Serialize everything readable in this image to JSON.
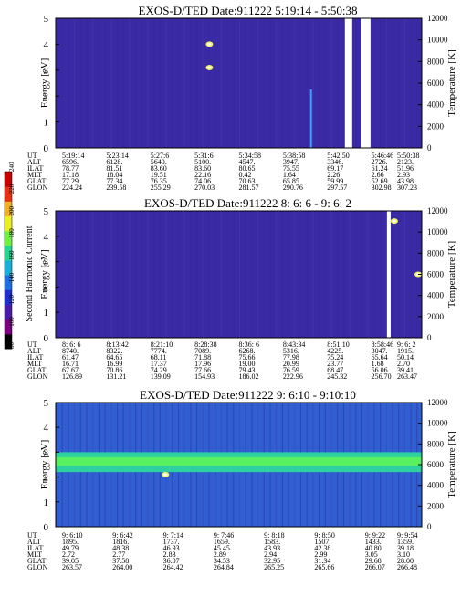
{
  "chart_data": [
    {
      "type": "heatmap",
      "title": "EXOS-D/TED   Date:911222  5:19:14 - 5:50:38",
      "ylabel": "Energy [eV]",
      "y2label": "Temperature [K]",
      "ylim": [
        0,
        5
      ],
      "yticks": [
        "0",
        "1",
        "2",
        "3",
        "4",
        "5"
      ],
      "y2lim": [
        0,
        12000
      ],
      "y2ticks": [
        "0",
        "2000",
        "4000",
        "6000",
        "8000",
        "10000",
        "12000"
      ],
      "background_color": "#3a2aa3",
      "features": [
        {
          "kind": "gap",
          "x0": 0.79,
          "x1": 0.81
        },
        {
          "kind": "gap",
          "x0": 0.835,
          "x1": 0.86
        },
        {
          "kind": "bright_spot",
          "x": 0.42,
          "y": 4.0
        },
        {
          "kind": "bright_spot",
          "x": 0.42,
          "y": 3.1
        },
        {
          "kind": "spike",
          "x": 0.695
        }
      ],
      "table": {
        "row_labels": [
          "UT",
          "ALT",
          "ILAT",
          "MLT",
          "GLAT",
          "GLON"
        ],
        "columns": [
          [
            "5:19:14",
            "6596.",
            "78.77",
            "17.18",
            "77.29",
            "224.24"
          ],
          [
            "5:23:14",
            "6128.",
            "81.51",
            "18.04",
            "77.34",
            "239.58"
          ],
          [
            "5:27:6",
            "5640.",
            "83.60",
            "19.51",
            "76.35",
            "255.29"
          ],
          [
            "5:31:6",
            "5100.",
            "83.60",
            "22.16",
            "74.06",
            "270.03"
          ],
          [
            "5:34:58",
            "4547.",
            "80.65",
            "0.42",
            "70.63",
            "281.57"
          ],
          [
            "5:38:58",
            "3947.",
            "75.55",
            "1.64",
            "65.85",
            "290.76"
          ],
          [
            "5:42:50",
            "3346.",
            "69.17",
            "2.26",
            "59.99",
            "297.57"
          ],
          [
            "5:46:46",
            "2726.",
            "61.24",
            "2.66",
            "52.69",
            "302.98"
          ],
          [
            "5:50:38",
            "2123.",
            "51.96",
            "2.93",
            "43.98",
            "307.23"
          ]
        ]
      }
    },
    {
      "type": "heatmap",
      "title": "EXOS-D/TED   Date:911222  8: 6: 6 - 9: 6: 2",
      "ylabel": "Energy [eV]",
      "y2label": "Temperature [K]",
      "ylim": [
        0,
        5
      ],
      "yticks": [
        "0",
        "1",
        "2",
        "3",
        "4",
        "5"
      ],
      "y2lim": [
        0,
        12000
      ],
      "y2ticks": [
        "0",
        "2000",
        "4000",
        "6000",
        "8000",
        "10000",
        "12000"
      ],
      "background_color": "#3a2aa3",
      "features": [
        {
          "kind": "gap",
          "x0": 0.905,
          "x1": 0.915
        },
        {
          "kind": "bright_spot",
          "x": 0.925,
          "y": 4.6
        },
        {
          "kind": "bright_spot",
          "x": 0.99,
          "y": 2.5
        }
      ],
      "table": {
        "row_labels": [
          "UT",
          "ALT",
          "ILAT",
          "MLT",
          "GLAT",
          "GLON"
        ],
        "columns": [
          [
            "8: 6: 6",
            "8740.",
            "61.47",
            "16.71",
            "67.67",
            "126.89"
          ],
          [
            "8:13:42",
            "8322.",
            "64.65",
            "16.99",
            "70.86",
            "131.21"
          ],
          [
            "8:21:10",
            "7774.",
            "68.11",
            "17.37",
            "74.29",
            "139.09"
          ],
          [
            "8:28:38",
            "7089.",
            "71.88",
            "17.96",
            "77.66",
            "154.93"
          ],
          [
            "8:36: 6",
            "6268.",
            "75.66",
            "19.00",
            "79.43",
            "186.02"
          ],
          [
            "8:43:34",
            "5316.",
            "77.98",
            "20.99",
            "76.59",
            "222.96"
          ],
          [
            "8:51:10",
            "4225.",
            "75.24",
            "23.77",
            "68.47",
            "245.32"
          ],
          [
            "8:58:46",
            "3047.",
            "65.64",
            "1.68",
            "56.06",
            "256.70"
          ],
          [
            "9: 6: 2",
            "1915.",
            "50.14",
            "2.70",
            "39.41",
            "263.47"
          ]
        ]
      }
    },
    {
      "type": "heatmap",
      "title": "EXOS-D/TED   Date:911222  9: 6:10 - 9:10:10",
      "ylabel": "Energy [eV]",
      "y2label": "Temperature [K]",
      "ylim": [
        0,
        5
      ],
      "yticks": [
        "0",
        "1",
        "2",
        "3",
        "4",
        "5"
      ],
      "y2lim": [
        0,
        12000
      ],
      "y2ticks": [
        "0",
        "2000",
        "4000",
        "6000",
        "8000",
        "10000",
        "12000"
      ],
      "background_color": "#2f5fd0",
      "features": [
        {
          "kind": "band",
          "y0": 2.2,
          "y1": 3.0,
          "color": "#2fd0a0"
        },
        {
          "kind": "band",
          "y0": 2.45,
          "y1": 2.8,
          "color": "#58f060"
        },
        {
          "kind": "bright_spot",
          "x": 0.3,
          "y": 2.1
        }
      ],
      "table": {
        "row_labels": [
          "UT",
          "ALT",
          "ILAT",
          "MLT",
          "GLAT",
          "GLON"
        ],
        "columns": [
          [
            "9: 6:10",
            "1895.",
            "49.79",
            "2.72",
            "39.05",
            "263.57"
          ],
          [
            "9: 6:42",
            "1816.",
            "48.38",
            "2.77",
            "37.58",
            "264.00"
          ],
          [
            "9: 7:14",
            "1737.",
            "46.93",
            "2.83",
            "36.07",
            "264.42"
          ],
          [
            "9: 7:46",
            "1659.",
            "45.45",
            "2.89",
            "34.53",
            "264.84"
          ],
          [
            "9: 8:18",
            "1583.",
            "43.93",
            "2.94",
            "32.95",
            "265.25"
          ],
          [
            "9: 8:50",
            "1507.",
            "42.38",
            "2.99",
            "31.34",
            "265.66"
          ],
          [
            "9: 9:22",
            "1433.",
            "40.80",
            "3.05",
            "29.68",
            "266.07"
          ],
          [
            "9: 9:54",
            "1359.",
            "39.18",
            "3.10",
            "28.00",
            "266.48"
          ]
        ]
      }
    }
  ],
  "colorbar": {
    "label": "Second Harmonic Current",
    "ticks": [
      "80",
      "100",
      "120",
      "140",
      "160",
      "180",
      "200",
      "220",
      "240"
    ],
    "colors": [
      "#000000",
      "#7a0080",
      "#4a1aa8",
      "#1f2fd0",
      "#1b6fe0",
      "#18b0d8",
      "#22d890",
      "#6ff040",
      "#e8f020",
      "#f0b020",
      "#e83010",
      "#c80000"
    ]
  }
}
